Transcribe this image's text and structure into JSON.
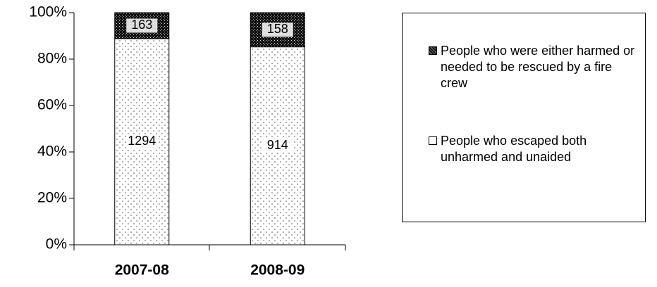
{
  "chart_data": {
    "type": "bar",
    "stacking": "percent",
    "categories": [
      "2007-08",
      "2008-09"
    ],
    "series": [
      {
        "name": "People who escaped both unharmed and unaided",
        "color": "#ffffff",
        "values": [
          1294,
          914
        ]
      },
      {
        "name": "People who were either harmed or needed to be rescued by a fire crew",
        "color": "#000000",
        "values": [
          163,
          158
        ]
      }
    ],
    "ylim": [
      0,
      100
    ],
    "yticks": [
      {
        "value": 0,
        "label": "0%"
      },
      {
        "value": 20,
        "label": "20%"
      },
      {
        "value": 40,
        "label": "40%"
      },
      {
        "value": 60,
        "label": "60%"
      },
      {
        "value": 80,
        "label": "80%"
      },
      {
        "value": 100,
        "label": "100%"
      }
    ],
    "legend": "right"
  }
}
